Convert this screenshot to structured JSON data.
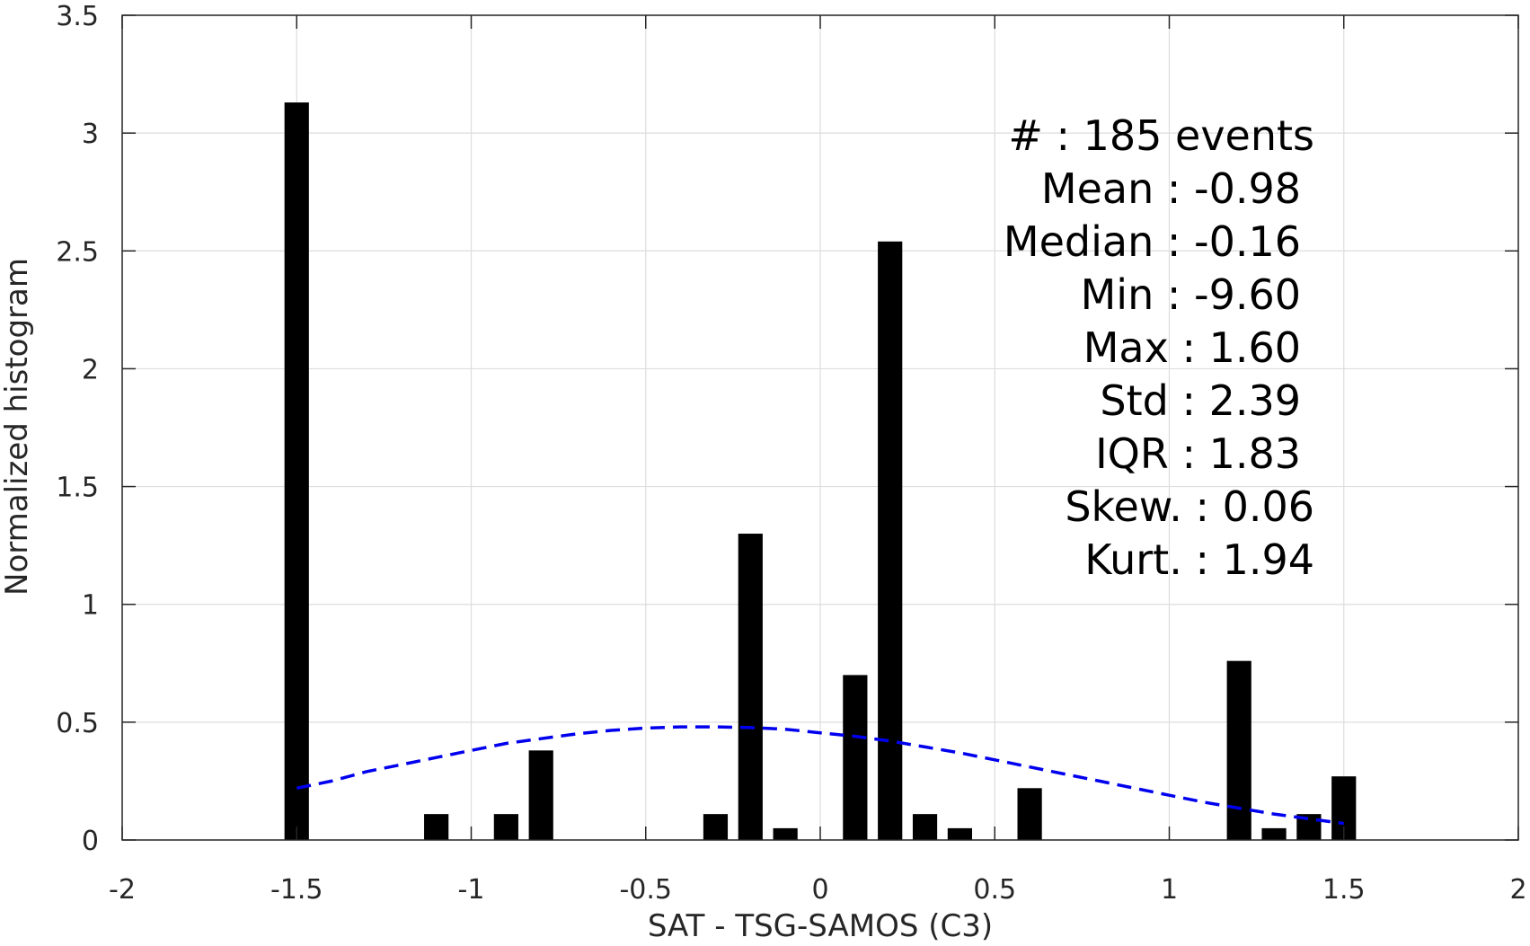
{
  "chart_data": {
    "type": "bar",
    "xlabel": "SAT - TSG-SAMOS (C3)",
    "ylabel": "Normalized histogram",
    "xlim": [
      -2,
      2
    ],
    "ylim": [
      0,
      3.5
    ],
    "grid": true,
    "x_ticks": [
      "-2",
      "-1.5",
      "-1",
      "-0.5",
      "0",
      "0.5",
      "1",
      "1.5",
      "2"
    ],
    "y_ticks": [
      "0",
      "0.5",
      "1",
      "1.5",
      "2",
      "2.5",
      "3",
      "3.5"
    ],
    "bar_width": 0.07,
    "bar_color": "#000000",
    "bars": [
      {
        "x": -1.5,
        "y": 3.13
      },
      {
        "x": -1.1,
        "y": 0.11
      },
      {
        "x": -0.9,
        "y": 0.11
      },
      {
        "x": -0.8,
        "y": 0.38
      },
      {
        "x": -0.3,
        "y": 0.11
      },
      {
        "x": -0.2,
        "y": 1.3
      },
      {
        "x": -0.1,
        "y": 0.05
      },
      {
        "x": 0.1,
        "y": 0.7
      },
      {
        "x": 0.2,
        "y": 2.54
      },
      {
        "x": 0.3,
        "y": 0.11
      },
      {
        "x": 0.4,
        "y": 0.05
      },
      {
        "x": 0.6,
        "y": 0.22
      },
      {
        "x": 1.2,
        "y": 0.76
      },
      {
        "x": 1.3,
        "y": 0.05
      },
      {
        "x": 1.4,
        "y": 0.11
      },
      {
        "x": 1.5,
        "y": 0.27
      }
    ],
    "fit_curve": {
      "style": "dashed",
      "color": "#0000ee",
      "x": [
        -1.5,
        -1.4,
        -1.3,
        -1.2,
        -1.1,
        -1.0,
        -0.9,
        -0.8,
        -0.7,
        -0.6,
        -0.5,
        -0.4,
        -0.3,
        -0.2,
        -0.1,
        0.0,
        0.1,
        0.2,
        0.3,
        0.4,
        0.5,
        0.6,
        0.7,
        0.8,
        0.9,
        1.0,
        1.1,
        1.2,
        1.3,
        1.4,
        1.5
      ],
      "y": [
        0.22,
        0.25,
        0.29,
        0.32,
        0.35,
        0.38,
        0.41,
        0.43,
        0.45,
        0.465,
        0.475,
        0.48,
        0.48,
        0.477,
        0.47,
        0.455,
        0.44,
        0.42,
        0.395,
        0.37,
        0.34,
        0.31,
        0.28,
        0.25,
        0.22,
        0.19,
        0.16,
        0.135,
        0.11,
        0.09,
        0.07
      ]
    },
    "stats": {
      "events": "#  : 185 events",
      "mean": "Mean : -0.98",
      "median": "Median : -0.16",
      "min": "Min : -9.60",
      "max": "Max : 1.60",
      "std": "Std : 2.39",
      "iqr": "IQR : 1.83",
      "skew": "Skew. : 0.06",
      "kurt": "Kurt. : 1.94"
    }
  }
}
